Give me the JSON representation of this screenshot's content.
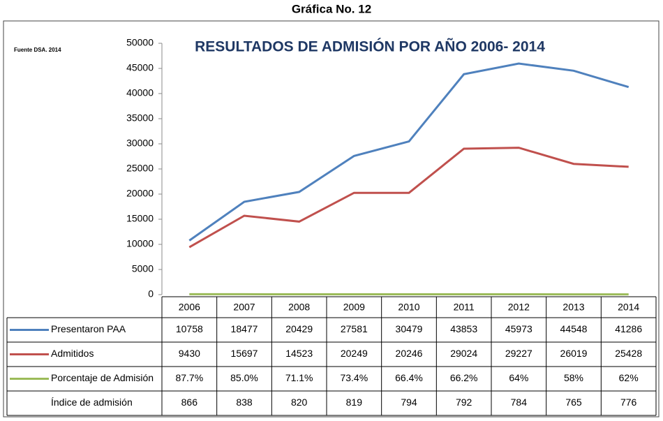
{
  "heading": "Gráfica No. 12",
  "source": "Fuente DSA. 2014",
  "chart_data": {
    "type": "line",
    "title": "RESULTADOS DE ADMISIÓN POR AÑO 2006- 2014",
    "categories": [
      "2006",
      "2007",
      "2008",
      "2009",
      "2010",
      "2011",
      "2012",
      "2013",
      "2014"
    ],
    "ylim": [
      0,
      50000
    ],
    "yticks": [
      0,
      5000,
      10000,
      15000,
      20000,
      25000,
      30000,
      35000,
      40000,
      45000,
      50000
    ],
    "series": [
      {
        "name": "Presentaron PAA",
        "color": "#4f81bd",
        "values": [
          10758,
          18477,
          20429,
          27581,
          30479,
          43853,
          45973,
          44548,
          41286
        ]
      },
      {
        "name": "Admitidos",
        "color": "#c0504d",
        "values": [
          9430,
          15697,
          14523,
          20249,
          20246,
          29024,
          29227,
          26019,
          25428
        ]
      },
      {
        "name": "Porcentaje de Admisión",
        "color": "#9bbb59",
        "values": [
          87.7,
          85.0,
          71.1,
          73.4,
          66.4,
          66.2,
          64,
          58,
          62
        ],
        "value_labels": [
          "87.7%",
          "85.0%",
          "71.1%",
          "73.4%",
          "66.4%",
          "66.2%",
          "64%",
          "58%",
          "62%"
        ]
      },
      {
        "name": "Índice de admisión",
        "values": [
          866,
          838,
          820,
          819,
          794,
          792,
          784,
          765,
          776
        ]
      }
    ]
  }
}
